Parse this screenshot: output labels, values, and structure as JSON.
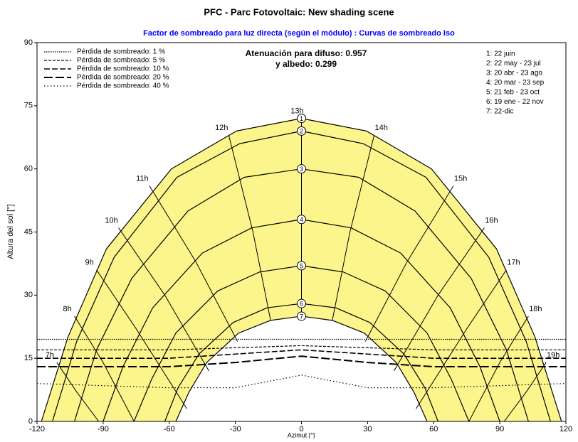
{
  "chart_data": {
    "type": "line",
    "title": "PFC - Parc Fotovoltaic: New shading scene",
    "subtitle": "Factor de sombreado para luz directa (según el módulo) : Curvas de sombreado Iso",
    "annotations": [
      "Atenuación para difuso: 0.957",
      "y albedo: 0.299"
    ],
    "x_label": "Azimut [°]",
    "y_label": "Altura del sol [°]",
    "xlim": [
      -120,
      120
    ],
    "xticks": [
      -120,
      -90,
      -60,
      -30,
      0,
      30,
      60,
      90,
      120
    ],
    "ylim": [
      0,
      90
    ],
    "yticks": [
      0,
      15,
      30,
      45,
      60,
      75,
      90
    ],
    "grid": false,
    "line_color": "#000000",
    "fill": "#fbf58c",
    "subtitle_color": "#0000ff",
    "series": [
      {
        "name": "1: 22 juin",
        "marker": "1",
        "x": [
          -118,
          -106,
          -88.5,
          -59,
          -29.5,
          0,
          29.5,
          59,
          88.5,
          106,
          118
        ],
        "values": [
          0,
          20,
          41,
          60,
          69,
          72,
          69,
          60,
          41,
          20,
          0
        ]
      },
      {
        "name": "2: 22 may - 23 jul",
        "marker": "2",
        "x": [
          -113,
          -102,
          -85,
          -56.5,
          -28,
          0,
          28,
          56.5,
          85,
          102,
          113
        ],
        "values": [
          0,
          19,
          39,
          58,
          66,
          69,
          66,
          58,
          39,
          19,
          0
        ]
      },
      {
        "name": "3: 20 abr - 23 ago",
        "marker": "3",
        "x": [
          -103,
          -93,
          -77,
          -51.5,
          -26,
          0,
          26,
          51.5,
          77,
          93,
          103
        ],
        "values": [
          0,
          17,
          34,
          50,
          58,
          60,
          58,
          50,
          34,
          17,
          0
        ]
      },
      {
        "name": "4: 20 mar - 23 sep",
        "marker": "4",
        "x": [
          -90,
          -81,
          -67.5,
          -45,
          -22.5,
          0,
          22.5,
          45,
          67.5,
          81,
          90
        ],
        "values": [
          0,
          13,
          27,
          40,
          46,
          48,
          46,
          40,
          27,
          13,
          0
        ]
      },
      {
        "name": "5: 21 feb - 23 oct",
        "marker": "5",
        "x": [
          -76,
          -68,
          -57,
          -38,
          -19,
          0,
          19,
          38,
          57,
          68,
          76
        ],
        "values": [
          0,
          10,
          21,
          31,
          35.5,
          37,
          35.5,
          31,
          21,
          10,
          0
        ]
      },
      {
        "name": "6: 19 ene - 22 nov",
        "marker": "6",
        "x": [
          -62,
          -56,
          -46.5,
          -31,
          -15.5,
          0,
          15.5,
          31,
          46.5,
          56,
          62
        ],
        "values": [
          0,
          8,
          16,
          23.5,
          27,
          28,
          27,
          23.5,
          16,
          8,
          0
        ]
      },
      {
        "name": "7: 22-dic",
        "marker": "7",
        "x": [
          -57,
          -51,
          -43,
          -28.5,
          -14,
          0,
          14,
          28.5,
          43,
          51,
          57
        ],
        "values": [
          0,
          7,
          14,
          21,
          24,
          25,
          24,
          21,
          14,
          7,
          0
        ]
      }
    ],
    "hour_lines": [
      {
        "label": "7h",
        "x": [
          -111,
          -102,
          -92
        ],
        "values": [
          14,
          7,
          0
        ]
      },
      {
        "label": "8h",
        "x": [
          -103,
          -90,
          -76
        ],
        "values": [
          25,
          14,
          0
        ]
      },
      {
        "label": "9h",
        "x": [
          -93,
          -75,
          -52
        ],
        "values": [
          36,
          22,
          3
        ]
      },
      {
        "label": "10h",
        "x": [
          -83,
          -62,
          -42
        ],
        "values": [
          46,
          30,
          12
        ]
      },
      {
        "label": "11h",
        "x": [
          -69,
          -48,
          -29
        ],
        "values": [
          56,
          38,
          19
        ]
      },
      {
        "label": "12h",
        "x": [
          -33,
          -22,
          -14
        ],
        "values": [
          68,
          45,
          24
        ]
      },
      {
        "label": "13h",
        "x": [
          0,
          0,
          0
        ],
        "values": [
          72,
          48,
          25
        ]
      },
      {
        "label": "14h",
        "x": [
          33,
          22,
          14
        ],
        "values": [
          68,
          45,
          24
        ]
      },
      {
        "label": "15h",
        "x": [
          69,
          48,
          29
        ],
        "values": [
          56,
          38,
          19
        ]
      },
      {
        "label": "16h",
        "x": [
          83,
          62,
          42
        ],
        "values": [
          46,
          30,
          12
        ]
      },
      {
        "label": "17h",
        "x": [
          93,
          75,
          52
        ],
        "values": [
          36,
          22,
          3
        ]
      },
      {
        "label": "18h",
        "x": [
          103,
          90,
          76
        ],
        "values": [
          25,
          14,
          0
        ]
      },
      {
        "label": "19h",
        "x": [
          111,
          102,
          92
        ],
        "values": [
          14,
          7,
          0
        ]
      }
    ],
    "shading_curves": [
      {
        "name": "Pérdida de sombreado: 1 %",
        "style": "dotted",
        "x": [
          -120,
          -60,
          -30,
          0,
          30,
          60,
          120
        ],
        "values": [
          19.5,
          19.5,
          19.5,
          19.5,
          19.5,
          19.5,
          19.5
        ]
      },
      {
        "name": "Pérdida de sombreado: 5 %",
        "style": "short-dash",
        "x": [
          -120,
          -60,
          -30,
          0,
          30,
          60,
          120
        ],
        "values": [
          17,
          17,
          17.5,
          18,
          17.5,
          17,
          17
        ]
      },
      {
        "name": "Pérdida de sombreado: 10 %",
        "style": "long-dash",
        "x": [
          -120,
          -60,
          -30,
          0,
          30,
          60,
          120
        ],
        "values": [
          15,
          15,
          16,
          17,
          16,
          15,
          15
        ]
      },
      {
        "name": "Pérdida de sombreado: 20 %",
        "style": "heavy-dash",
        "x": [
          -120,
          -60,
          -30,
          0,
          30,
          60,
          120
        ],
        "values": [
          13,
          13,
          14,
          15.5,
          14,
          13,
          13
        ]
      },
      {
        "name": "Pérdida de sombreado: 40 %",
        "style": "sparse-dot",
        "x": [
          -120,
          -60,
          -30,
          0,
          30,
          60,
          120
        ],
        "values": [
          9,
          8,
          8,
          11,
          8,
          8,
          9
        ]
      }
    ]
  }
}
